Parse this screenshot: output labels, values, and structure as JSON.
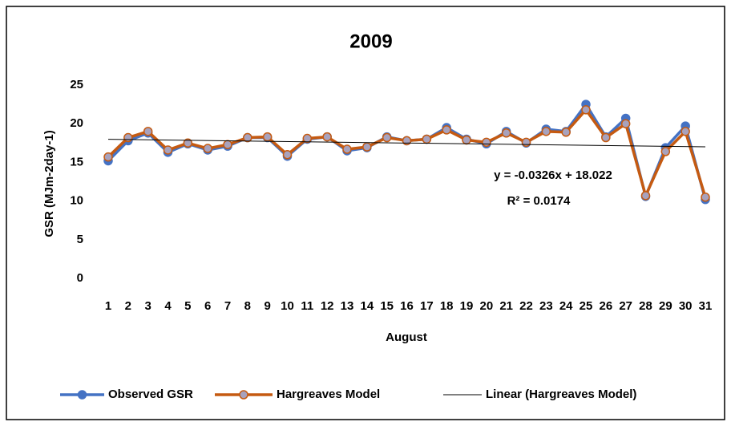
{
  "chart_data": {
    "type": "line",
    "title": "2009",
    "x_label": "August",
    "y_label": "GSR (MJm-2day-1)",
    "categories": [
      "1",
      "2",
      "3",
      "4",
      "5",
      "6",
      "7",
      "8",
      "9",
      "10",
      "11",
      "12",
      "13",
      "14",
      "15",
      "16",
      "17",
      "18",
      "19",
      "20",
      "21",
      "22",
      "23",
      "24",
      "25",
      "26",
      "27",
      "28",
      "29",
      "30",
      "31"
    ],
    "series": [
      {
        "name": "Observed GSR",
        "color": "#4472c4",
        "marker_fill": "#4472c4",
        "values": [
          15.2,
          17.8,
          18.8,
          16.3,
          17.4,
          16.6,
          17.1,
          18.2,
          18.2,
          15.8,
          18.0,
          18.3,
          16.5,
          16.9,
          18.3,
          17.8,
          18.0,
          19.5,
          18.0,
          17.4,
          19.0,
          17.5,
          19.3,
          19.0,
          22.5,
          18.3,
          20.7,
          10.6,
          16.9,
          19.7,
          10.2
        ]
      },
      {
        "name": "Hargreaves Model",
        "color": "#c55a11",
        "marker_fill": "#a8a2bd",
        "values": [
          15.7,
          18.2,
          19.0,
          16.6,
          17.5,
          16.8,
          17.3,
          18.2,
          18.3,
          16.0,
          18.1,
          18.3,
          16.7,
          17.0,
          18.2,
          17.8,
          18.0,
          19.2,
          17.9,
          17.6,
          18.8,
          17.6,
          19.0,
          18.9,
          21.8,
          18.2,
          20.0,
          10.7,
          16.4,
          19.0,
          10.5
        ]
      }
    ],
    "trendline": {
      "name": "Linear (Hargreaves Model)",
      "color": "#000000",
      "slope": -0.0326,
      "intercept": 18.022,
      "equation": "y = -0.0326x + 18.022",
      "r2_label": "R² = 0.0174"
    },
    "ylim": [
      0,
      25
    ],
    "yticks": [
      0,
      5,
      10,
      15,
      20,
      25
    ],
    "grid": false,
    "legend": "bottom"
  }
}
